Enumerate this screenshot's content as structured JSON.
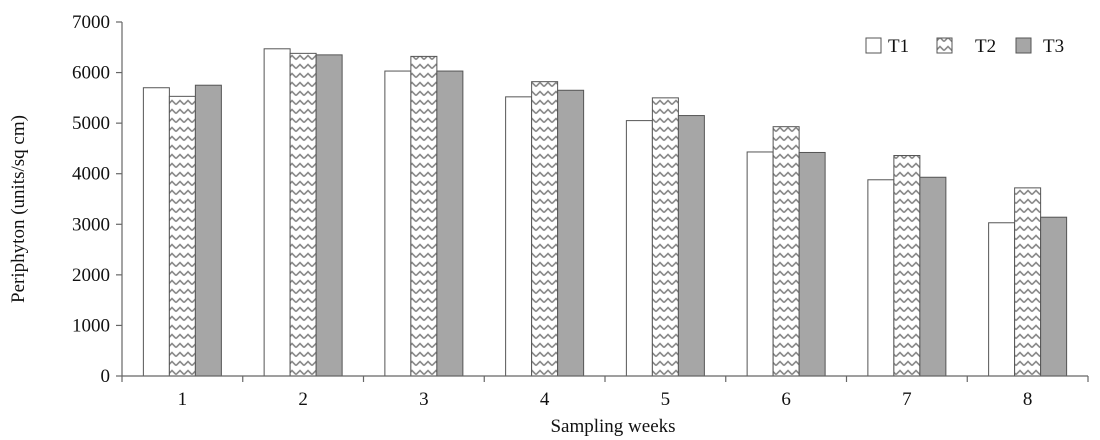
{
  "chart_data": {
    "type": "bar",
    "title": "",
    "xlabel": "Sampling weeks",
    "ylabel": "Periphyton (units/sq cm)",
    "categories": [
      "1",
      "2",
      "3",
      "4",
      "5",
      "6",
      "7",
      "8"
    ],
    "series": [
      {
        "name": "T1",
        "values": [
          5700,
          6470,
          6030,
          5520,
          5050,
          4430,
          3880,
          3030
        ],
        "fill": "#ffffff",
        "pattern": "none"
      },
      {
        "name": "T2",
        "values": [
          5530,
          6380,
          6320,
          5820,
          5500,
          4930,
          4360,
          3720
        ],
        "fill": "#ffffff",
        "pattern": "zigzag"
      },
      {
        "name": "T3",
        "values": [
          5750,
          6350,
          6030,
          5650,
          5150,
          4420,
          3930,
          3140
        ],
        "fill": "#a6a6a6",
        "pattern": "none"
      }
    ],
    "ylim": [
      0,
      7000
    ],
    "yticks": [
      "0",
      "1000",
      "2000",
      "3000",
      "4000",
      "5000",
      "6000",
      "7000"
    ],
    "grid": false,
    "legend_position": "top-right",
    "colors": {
      "axis": "#666666",
      "bar_edge": "#555555",
      "t3_fill": "#a6a6a6",
      "pattern_stroke": "#8a8a8a"
    }
  }
}
